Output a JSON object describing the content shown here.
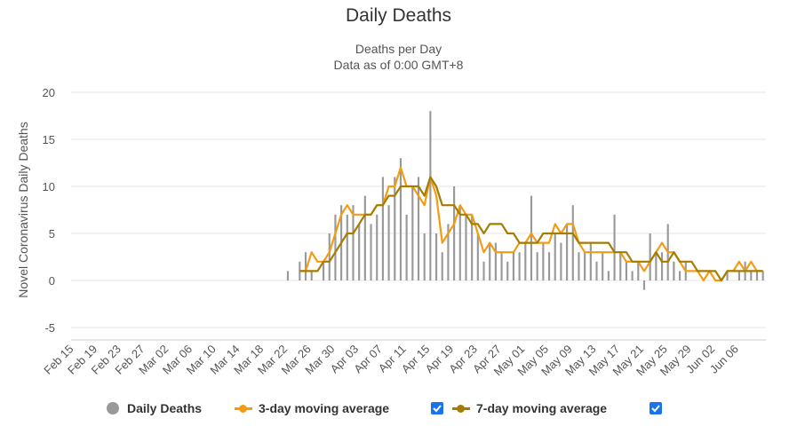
{
  "chart_data": {
    "type": "bar",
    "title": "Daily Deaths",
    "subtitle_lines": [
      "Deaths per Day",
      "Data as of 0:00 GMT+8"
    ],
    "ylabel": "Novel Coronavirus Daily Deaths",
    "ylim": [
      -5,
      20
    ],
    "y_ticks": [
      -5,
      0,
      5,
      10,
      15,
      20
    ],
    "x_tick_labels": [
      "Feb 15",
      "Feb 19",
      "Feb 23",
      "Feb 27",
      "Mar 02",
      "Mar 06",
      "Mar 10",
      "Mar 14",
      "Mar 18",
      "Mar 22",
      "Mar 26",
      "Mar 30",
      "Apr 03",
      "Apr 07",
      "Apr 11",
      "Apr 15",
      "Apr 19",
      "Apr 23",
      "Apr 27",
      "May 01",
      "May 05",
      "May 09",
      "May 13",
      "May 17",
      "May 21",
      "May 25",
      "May 29",
      "Jun 02",
      "Jun 06"
    ],
    "x_start": "Feb 15",
    "grid": true,
    "legend_position": "bottom",
    "series": [
      {
        "name": "Daily Deaths",
        "type": "bar",
        "color": "#999999",
        "values": [
          0,
          0,
          0,
          0,
          0,
          0,
          0,
          0,
          0,
          0,
          0,
          0,
          0,
          0,
          0,
          0,
          0,
          0,
          0,
          0,
          0,
          0,
          0,
          0,
          0,
          0,
          0,
          0,
          0,
          0,
          0,
          0,
          0,
          0,
          0,
          0,
          1,
          0,
          2,
          3,
          1,
          0,
          2,
          5,
          7,
          8,
          7,
          8,
          6,
          9,
          6,
          7,
          11,
          8,
          11,
          13,
          7,
          10,
          11,
          5,
          18,
          5,
          3,
          6,
          10,
          8,
          7,
          7,
          5,
          2,
          4,
          4,
          3,
          2,
          3,
          3,
          4,
          9,
          3,
          4,
          3,
          5,
          4,
          6,
          8,
          3,
          3,
          4,
          2,
          3,
          1,
          7,
          3,
          2,
          1,
          2,
          -1,
          5,
          3,
          3,
          6,
          2,
          1,
          2,
          0,
          0,
          0,
          0,
          0,
          0,
          1,
          0,
          1,
          2,
          1,
          1,
          1
        ]
      },
      {
        "name": "3-day moving average",
        "type": "line",
        "color": "#f39c12",
        "values": [
          null,
          null,
          null,
          null,
          null,
          null,
          null,
          null,
          null,
          null,
          null,
          null,
          null,
          null,
          null,
          null,
          null,
          null,
          null,
          null,
          null,
          null,
          null,
          null,
          null,
          null,
          null,
          null,
          null,
          null,
          null,
          null,
          null,
          null,
          null,
          null,
          null,
          null,
          1,
          1,
          3,
          2,
          2,
          3,
          5,
          7,
          8,
          7,
          7,
          7,
          7,
          8,
          8,
          10,
          10,
          12,
          10,
          10,
          9,
          8,
          11,
          9,
          4,
          5,
          6,
          8,
          7,
          7,
          5,
          3,
          4,
          3,
          3,
          3,
          3,
          4,
          4,
          5,
          4,
          4,
          4,
          6,
          5,
          6,
          6,
          4,
          3,
          3,
          3,
          3,
          3,
          3,
          3,
          2,
          2,
          2,
          1,
          2,
          3,
          4,
          3,
          3,
          2,
          1,
          1,
          1,
          0,
          1,
          0,
          0,
          1,
          1,
          2,
          1,
          2,
          1,
          1
        ]
      },
      {
        "name": "7-day moving average",
        "type": "line",
        "color": "#a67c00",
        "values": [
          null,
          null,
          null,
          null,
          null,
          null,
          null,
          null,
          null,
          null,
          null,
          null,
          null,
          null,
          null,
          null,
          null,
          null,
          null,
          null,
          null,
          null,
          null,
          null,
          null,
          null,
          null,
          null,
          null,
          null,
          null,
          null,
          null,
          null,
          null,
          null,
          null,
          null,
          1,
          1,
          1,
          1,
          2,
          2,
          3,
          4,
          5,
          5,
          6,
          7,
          7,
          8,
          8,
          9,
          9,
          10,
          10,
          10,
          10,
          9,
          11,
          10,
          8,
          8,
          8,
          7,
          7,
          6,
          6,
          5,
          6,
          6,
          6,
          5,
          5,
          4,
          4,
          4,
          4,
          5,
          5,
          5,
          5,
          5,
          5,
          4,
          4,
          4,
          4,
          4,
          4,
          3,
          3,
          3,
          2,
          2,
          2,
          2,
          3,
          2,
          2,
          3,
          2,
          2,
          2,
          1,
          1,
          1,
          1,
          0,
          1,
          1,
          1,
          1,
          1,
          1,
          1
        ]
      }
    ]
  },
  "legend": {
    "items": [
      {
        "label": "Daily Deaths",
        "color": "#999999"
      },
      {
        "label": "3-day moving average",
        "color": "#f39c12"
      },
      {
        "label": "7-day moving average",
        "color": "#a67c00"
      }
    ],
    "checkbox_color": "#1a73e8"
  }
}
